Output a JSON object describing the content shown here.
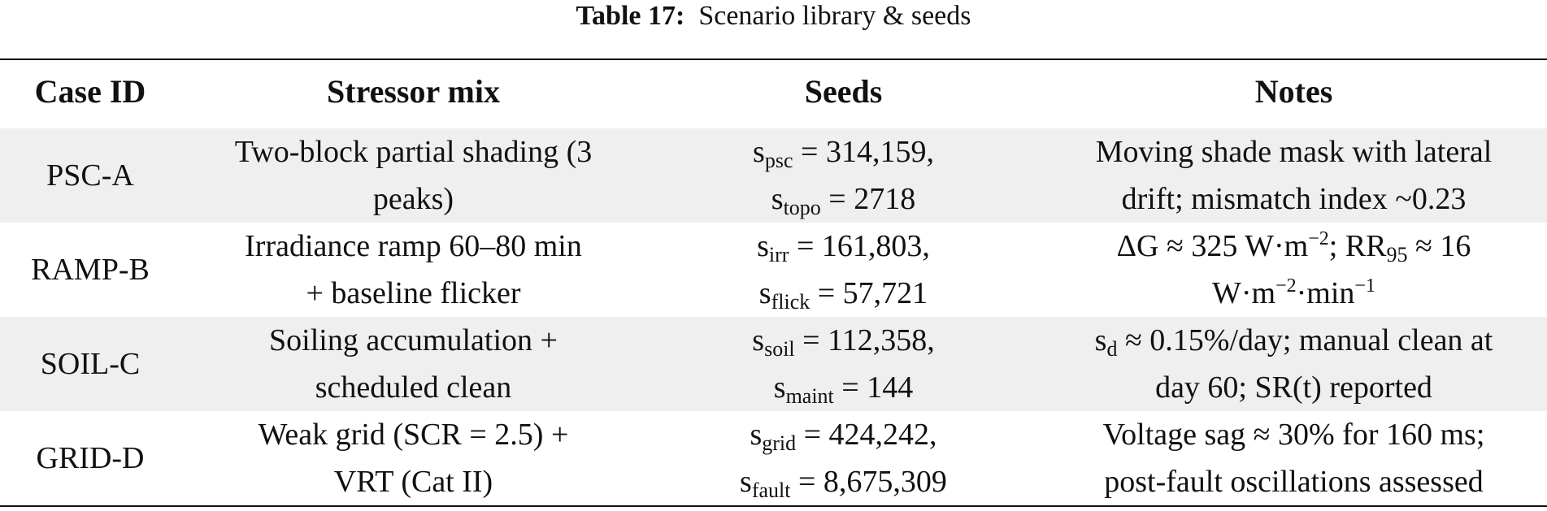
{
  "caption": {
    "label": "Table 17:",
    "text": "Scenario library & seeds"
  },
  "headers": [
    "Case ID",
    "Stressor mix",
    "Seeds",
    "Notes"
  ],
  "rows": [
    {
      "case_id": "PSC-A",
      "stressor": [
        "Two-block partial shading (3",
        "peaks)"
      ],
      "seeds": [
        {
          "var": "s",
          "sub": "psc",
          "value": " = 314,159,"
        },
        {
          "var": "s",
          "sub": "topo",
          "value": " = 2718"
        }
      ],
      "notes": {
        "line1": "Moving shade mask with lateral",
        "line2": "drift; mismatch index ~0.23"
      }
    },
    {
      "case_id": "RAMP-B",
      "stressor": [
        "Irradiance ramp 60–80 min",
        "+ baseline flicker"
      ],
      "seeds": [
        {
          "var": "s",
          "sub": "irr",
          "value": " = 161,803,"
        },
        {
          "var": "s",
          "sub": "flick",
          "value": " = 57,721"
        }
      ],
      "notes": {
        "p1": "ΔG ≈ 325 W·m",
        "sup1": "−2",
        "p2": "; RR",
        "sub1": "95",
        "p3": " ≈ 16",
        "p4": "W·m",
        "sup2": "−2",
        "p5": "·min",
        "sup3": "−1"
      }
    },
    {
      "case_id": "SOIL-C",
      "stressor": [
        "Soiling accumulation +",
        "scheduled clean"
      ],
      "seeds": [
        {
          "var": "s",
          "sub": "soil",
          "value": " = 112,358,"
        },
        {
          "var": "s",
          "sub": "maint",
          "value": " = 144"
        }
      ],
      "notes": {
        "var": "s",
        "sub": "d",
        "p1": " ≈ 0.15%/day; manual clean at",
        "line2": "day 60; SR(t) reported"
      }
    },
    {
      "case_id": "GRID-D",
      "stressor": [
        "Weak grid (SCR = 2.5) +",
        "VRT (Cat II)"
      ],
      "seeds": [
        {
          "var": "s",
          "sub": "grid",
          "value": " = 424,242,"
        },
        {
          "var": "s",
          "sub": "fault",
          "value": " = 8,675,309"
        }
      ],
      "notes": {
        "line1": "Voltage sag ≈ 30% for 160 ms;",
        "line2": "post-fault oscillations assessed"
      }
    }
  ]
}
